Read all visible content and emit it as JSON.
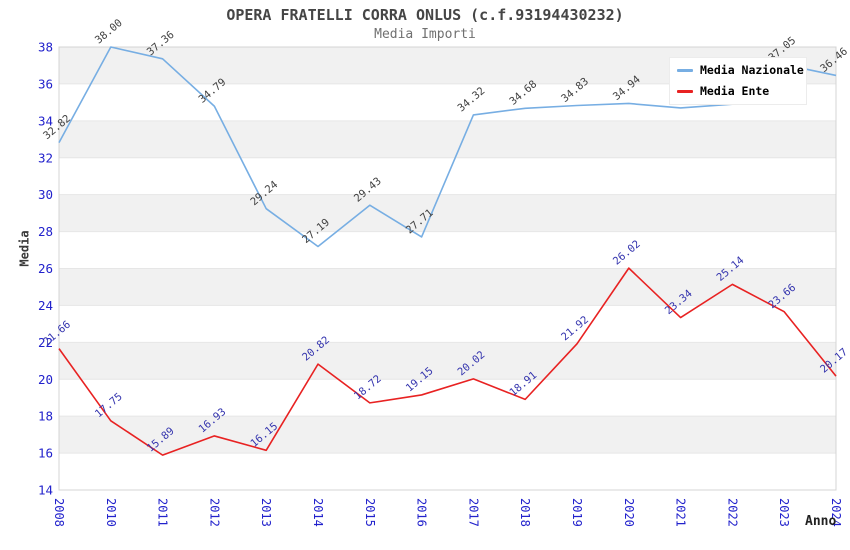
{
  "header": {
    "title": "OPERA FRATELLI CORRA ONLUS (c.f.93194430232)",
    "subtitle": "Media Importi"
  },
  "axes": {
    "x_title": "Anno",
    "y_title": "Media"
  },
  "legend": {
    "position": "top-right",
    "items": [
      {
        "label": "Media Nazionale",
        "color": "#77aee3"
      },
      {
        "label": "Media Ente",
        "color": "#e82222"
      }
    ]
  },
  "chart_data": {
    "type": "line",
    "title": "OPERA FRATELLI CORRA ONLUS (c.f.93194430232)",
    "subtitle": "Media Importi",
    "xlabel": "Anno",
    "ylabel": "Media",
    "ylim": [
      14,
      38
    ],
    "ytick_step": 2,
    "grid": true,
    "legend_position": "top-right",
    "categories": [
      "2008",
      "2010",
      "2011",
      "2012",
      "2013",
      "2014",
      "2015",
      "2016",
      "2017",
      "2018",
      "2019",
      "2020",
      "2021",
      "2022",
      "2023",
      "2024"
    ],
    "series": [
      {
        "name": "Media Nazionale",
        "color": "#77aee3",
        "label_color": "#404040",
        "values": [
          32.82,
          38.0,
          37.36,
          34.79,
          29.24,
          27.19,
          29.43,
          27.71,
          34.32,
          34.68,
          34.83,
          34.94,
          34.7,
          34.9,
          37.05,
          36.46
        ],
        "labels": [
          "32.82",
          "38.00",
          "37.36",
          "34.79",
          "29.24",
          "27.19",
          "29.43",
          "27.71",
          "34.32",
          "34.68",
          "34.83",
          "34.94",
          null,
          null,
          "37.05",
          "36.46"
        ]
      },
      {
        "name": "Media Ente",
        "color": "#e82222",
        "label_color": "#3434ae",
        "values": [
          21.66,
          17.75,
          15.89,
          16.93,
          16.15,
          20.82,
          18.72,
          19.15,
          20.02,
          18.91,
          21.92,
          26.02,
          23.34,
          25.14,
          23.66,
          20.17
        ],
        "labels": [
          "21.66",
          "17.75",
          "15.89",
          "16.93",
          "16.15",
          "20.82",
          "18.72",
          "19.15",
          "20.02",
          "18.91",
          "21.92",
          "26.02",
          "23.34",
          "25.14",
          "23.66",
          "20.17"
        ]
      }
    ],
    "bands": [
      [
        16,
        18
      ],
      [
        20,
        22
      ],
      [
        24,
        26
      ],
      [
        28,
        30
      ],
      [
        32,
        34
      ],
      [
        36,
        38
      ]
    ]
  },
  "colors": {
    "band": "#f1f1f1",
    "grid": "#e6e6e6",
    "frame": "#d4d4d4",
    "tick_label": "#2222cc",
    "title": "#454545",
    "subtitle": "#707070",
    "axis_title": "#3a3a3a"
  }
}
